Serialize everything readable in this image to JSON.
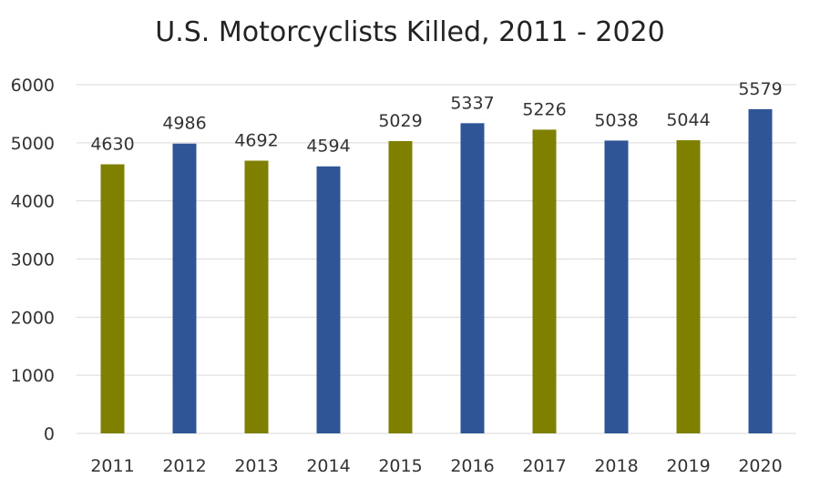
{
  "chart_data": {
    "type": "bar",
    "title": "U.S. Motorcyclists Killed, 2011 - 2020",
    "xlabel": "",
    "ylabel": "",
    "categories": [
      "2011",
      "2012",
      "2013",
      "2014",
      "2015",
      "2016",
      "2017",
      "2018",
      "2019",
      "2020"
    ],
    "values": [
      4630,
      4986,
      4692,
      4594,
      5029,
      5337,
      5226,
      5038,
      5044,
      5579
    ],
    "bar_colors": [
      "#808000",
      "#2f5597",
      "#808000",
      "#2f5597",
      "#808000",
      "#2f5597",
      "#808000",
      "#2f5597",
      "#808000",
      "#2f5597"
    ],
    "ylim": [
      0,
      6000
    ],
    "yticks": [
      0,
      1000,
      2000,
      3000,
      4000,
      5000,
      6000
    ],
    "grid": true,
    "legend": "none"
  }
}
